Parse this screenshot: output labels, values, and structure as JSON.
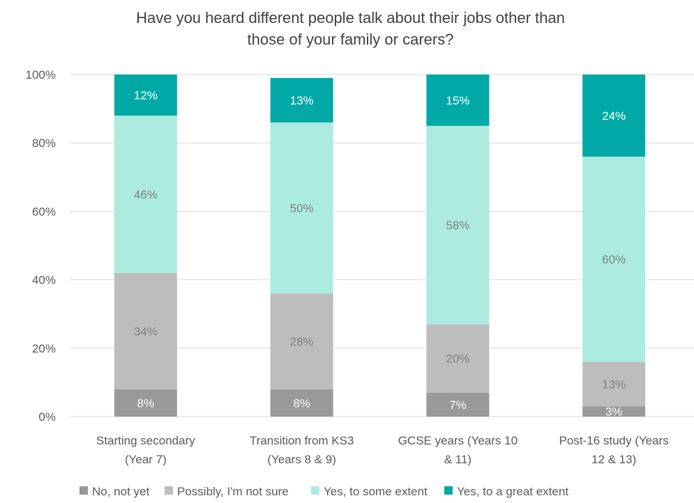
{
  "chart_data": {
    "type": "bar",
    "stacked": true,
    "title": "Have you heard different people talk about their jobs other than\nthose of your family or carers?",
    "categories": [
      [
        "Starting secondary",
        "(Year 7)"
      ],
      [
        "Transition from KS3",
        "(Years 8 & 9)"
      ],
      [
        "GCSE years (Years 10",
        "& 11)"
      ],
      [
        "Post-16 study (Years",
        "12 & 13)"
      ]
    ],
    "series": [
      {
        "name": "No, not yet",
        "color": "#999999",
        "label_color": "#ffffff",
        "values": [
          8,
          8,
          7,
          3
        ],
        "labels": [
          "8%",
          "8%",
          "7%",
          "3%"
        ]
      },
      {
        "name": "Possibly, I'm not sure",
        "color": "#bdbdbd",
        "label_color": "#7f7f7f",
        "values": [
          34,
          28,
          20,
          13
        ],
        "labels": [
          "34%",
          "28%",
          "20%",
          "13%"
        ]
      },
      {
        "name": "Yes, to some extent",
        "color": "#acebe0",
        "label_color": "#7f7f7f",
        "values": [
          46,
          50,
          58,
          60
        ],
        "labels": [
          "46%",
          "50%",
          "58%",
          "60%"
        ]
      },
      {
        "name": "Yes, to a great extent",
        "color": "#00a9a6",
        "label_color": "#ffffff",
        "values": [
          12,
          13,
          15,
          24
        ],
        "labels": [
          "12%",
          "13%",
          "15%",
          "24%"
        ]
      }
    ],
    "ylim": [
      0,
      100
    ],
    "yticks": [
      "0%",
      "20%",
      "40%",
      "60%",
      "80%",
      "100%"
    ],
    "grid": true,
    "legend_position": "bottom"
  }
}
